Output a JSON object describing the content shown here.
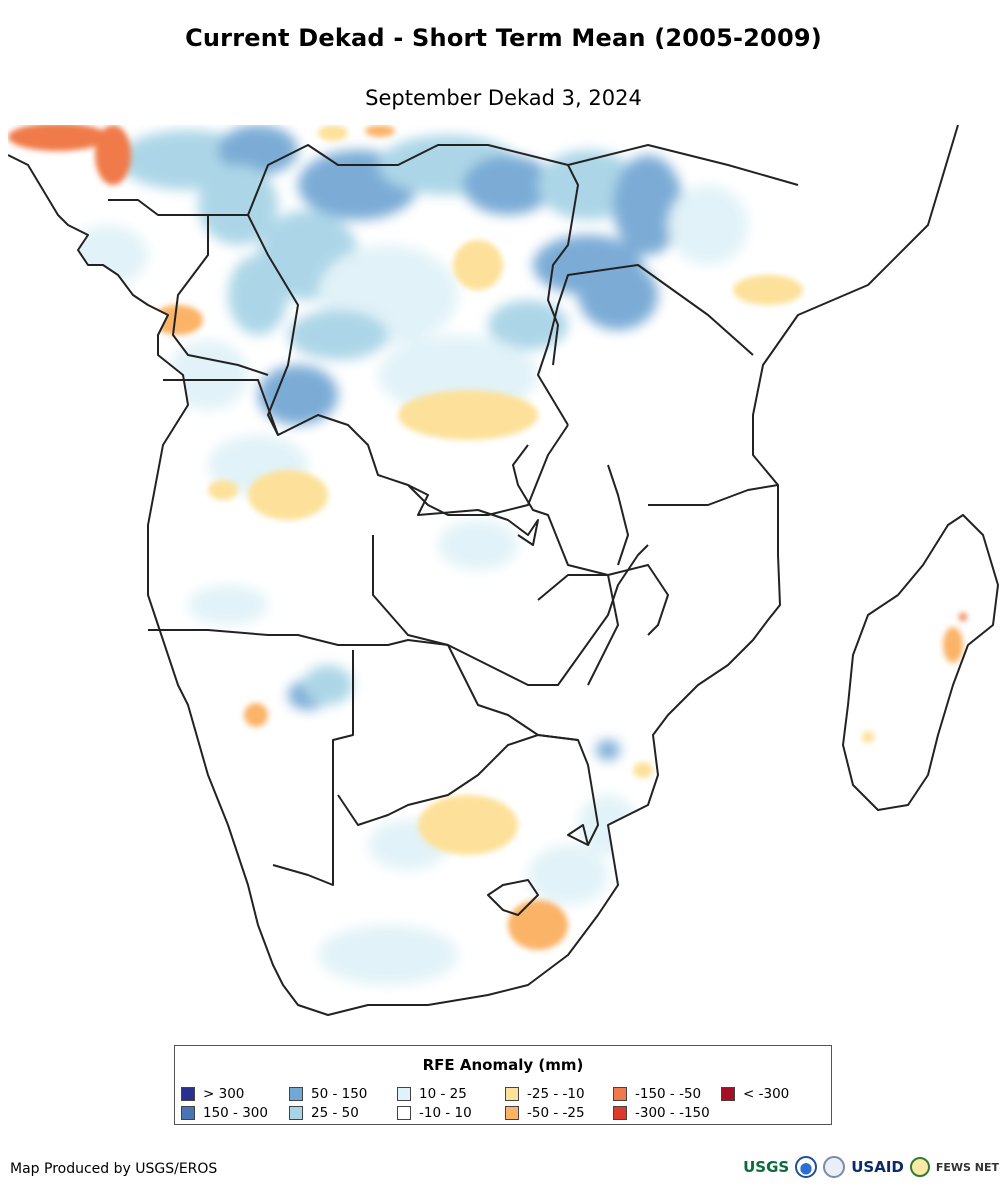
{
  "title": "Current Dekad - Short Term Mean (2005-2009)",
  "subtitle": "September Dekad 3, 2024",
  "legend": {
    "title": "RFE Anomaly (mm)",
    "items": [
      {
        "label": "> 300",
        "color": "#2b2f8e"
      },
      {
        "label": "150 - 300",
        "color": "#4a74b4"
      },
      {
        "label": "50 - 150",
        "color": "#74a8d4"
      },
      {
        "label": "25 - 50",
        "color": "#a8d4e6"
      },
      {
        "label": "10 - 25",
        "color": "#e0f2f8"
      },
      {
        "label": "-10 - 10",
        "color": "#ffffff"
      },
      {
        "label": "-25 - -10",
        "color": "#fde19a"
      },
      {
        "label": "-50 - -25",
        "color": "#fbb367"
      },
      {
        "label": "-150 - -50",
        "color": "#f07a4a"
      },
      {
        "label": "-300 - -150",
        "color": "#dd3a2c"
      },
      {
        "label": "< -300",
        "color": "#a50f26"
      }
    ]
  },
  "credit": "Map Produced by USGS/EROS",
  "logos": {
    "usgs": "USGS",
    "usaid": "USAID",
    "fews": "FEWS NET"
  }
}
